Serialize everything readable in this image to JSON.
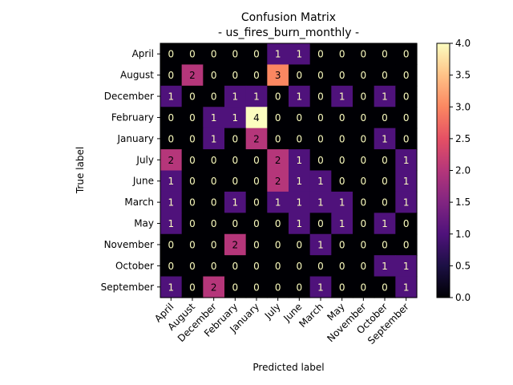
{
  "chart_data": {
    "type": "heatmap",
    "title": "Confusion Matrix",
    "subtitle": "- us_fires_burn_monthly -",
    "xlabel": "Predicted label",
    "ylabel": "True label",
    "labels": [
      "April",
      "August",
      "December",
      "February",
      "January",
      "July",
      "June",
      "March",
      "May",
      "November",
      "October",
      "September"
    ],
    "matrix": [
      [
        0,
        0,
        0,
        0,
        0,
        1,
        1,
        0,
        0,
        0,
        0,
        0
      ],
      [
        0,
        2,
        0,
        0,
        0,
        3,
        0,
        0,
        0,
        0,
        0,
        0
      ],
      [
        1,
        0,
        0,
        1,
        1,
        0,
        1,
        0,
        1,
        0,
        1,
        0
      ],
      [
        0,
        0,
        1,
        1,
        4,
        0,
        0,
        0,
        0,
        0,
        0,
        0
      ],
      [
        0,
        0,
        1,
        0,
        2,
        0,
        0,
        0,
        0,
        0,
        1,
        0
      ],
      [
        2,
        0,
        0,
        0,
        0,
        2,
        1,
        0,
        0,
        0,
        0,
        1
      ],
      [
        1,
        0,
        0,
        0,
        0,
        2,
        1,
        1,
        0,
        0,
        0,
        1
      ],
      [
        1,
        0,
        0,
        1,
        0,
        1,
        1,
        1,
        1,
        0,
        0,
        1
      ],
      [
        1,
        0,
        0,
        0,
        0,
        0,
        1,
        0,
        1,
        0,
        1,
        0
      ],
      [
        0,
        0,
        0,
        2,
        0,
        0,
        0,
        1,
        0,
        0,
        0,
        0
      ],
      [
        0,
        0,
        0,
        0,
        0,
        0,
        0,
        0,
        0,
        0,
        1,
        1
      ],
      [
        1,
        0,
        2,
        0,
        0,
        0,
        0,
        1,
        0,
        0,
        0,
        1
      ]
    ],
    "colormap": "magma",
    "vmin": 0,
    "vmax": 4,
    "colorbar_ticks": [
      "0.0",
      "0.5",
      "1.0",
      "1.5",
      "2.0",
      "2.5",
      "3.0",
      "3.5",
      "4.0"
    ],
    "colorbar_tick_values": [
      0,
      0.5,
      1,
      1.5,
      2,
      2.5,
      3,
      3.5,
      4
    ]
  }
}
